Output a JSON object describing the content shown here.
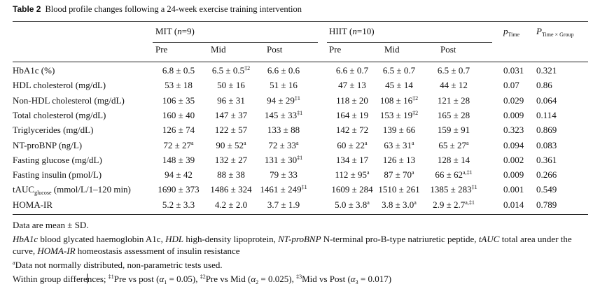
{
  "table": {
    "label": "Table 2",
    "title": "Blood profile changes following a 24-week exercise training intervention",
    "groups": [
      {
        "name": "MIT",
        "n_label": "n",
        "n_value": "=9"
      },
      {
        "name": "HIIT",
        "n_label": "n",
        "n_value": "=10"
      }
    ],
    "p_time": {
      "main": "p",
      "sub": "Time"
    },
    "p_time_group": {
      "main": "P",
      "sub": "Time × Group"
    },
    "subheaders": [
      "Pre",
      "Mid",
      "Post",
      "Pre",
      "Mid",
      "Post"
    ],
    "rows": [
      {
        "label": "HbA1c (%)",
        "label_sub": "",
        "label_rest": "",
        "cells": [
          [
            "6.8 ± 0.5",
            ""
          ],
          [
            "6.5 ± 0.5",
            "‡2"
          ],
          [
            "6.6 ± 0.6",
            ""
          ],
          [
            "6.6 ± 0.7",
            ""
          ],
          [
            "6.5 ± 0.7",
            ""
          ],
          [
            "6.5 ± 0.7",
            ""
          ]
        ],
        "p_time": "0.031",
        "p_tg": "0.321"
      },
      {
        "label": "HDL cholesterol (mg/dL)",
        "label_sub": "",
        "label_rest": "",
        "cells": [
          [
            "53 ± 18",
            ""
          ],
          [
            "50 ± 16",
            ""
          ],
          [
            "51 ± 16",
            ""
          ],
          [
            "47 ± 13",
            ""
          ],
          [
            "45 ± 14",
            ""
          ],
          [
            "44 ± 12",
            ""
          ]
        ],
        "p_time": "0.07",
        "p_tg": "0.86"
      },
      {
        "label": "Non-HDL cholesterol (mg/dL)",
        "label_sub": "",
        "label_rest": "",
        "cells": [
          [
            "106 ± 35",
            ""
          ],
          [
            "96 ± 31",
            ""
          ],
          [
            "94 ± 29",
            "‡1"
          ],
          [
            "118 ± 20",
            ""
          ],
          [
            "108 ± 16",
            "‡2"
          ],
          [
            "121 ± 28",
            ""
          ]
        ],
        "p_time": "0.029",
        "p_tg": "0.064"
      },
      {
        "label": "Total cholesterol (mg/dL)",
        "label_sub": "",
        "label_rest": "",
        "cells": [
          [
            "160 ± 40",
            ""
          ],
          [
            "147 ± 37",
            ""
          ],
          [
            "145 ± 33",
            "‡1"
          ],
          [
            "164 ± 19",
            ""
          ],
          [
            "153 ± 19",
            "‡2"
          ],
          [
            "165 ± 28",
            ""
          ]
        ],
        "p_time": "0.009",
        "p_tg": "0.114"
      },
      {
        "label": "Triglycerides (mg/dL)",
        "label_sub": "",
        "label_rest": "",
        "cells": [
          [
            "126 ± 74",
            ""
          ],
          [
            "122 ± 57",
            ""
          ],
          [
            "133 ± 88",
            ""
          ],
          [
            "142 ± 72",
            ""
          ],
          [
            "139 ± 66",
            ""
          ],
          [
            "159 ± 91",
            ""
          ]
        ],
        "p_time": "0.323",
        "p_tg": "0.869"
      },
      {
        "label": "NT-proBNP (ng/L)",
        "label_sub": "",
        "label_rest": "",
        "cells": [
          [
            "72 ± 27",
            "a"
          ],
          [
            "90 ± 52",
            "a"
          ],
          [
            "72 ± 33",
            "a"
          ],
          [
            "60 ± 22",
            "a"
          ],
          [
            "63 ± 31",
            "a"
          ],
          [
            "65 ± 27",
            "a"
          ]
        ],
        "p_time": "0.094",
        "p_tg": "0.083"
      },
      {
        "label": "Fasting glucose (mg/dL)",
        "label_sub": "",
        "label_rest": "",
        "cells": [
          [
            "148 ± 39",
            ""
          ],
          [
            "132 ± 27",
            ""
          ],
          [
            "131 ± 30",
            "‡1"
          ],
          [
            "134 ± 17",
            ""
          ],
          [
            "126 ± 13",
            ""
          ],
          [
            "128 ± 14",
            ""
          ]
        ],
        "p_time": "0.002",
        "p_tg": "0.361"
      },
      {
        "label": "Fasting insulin (pmol/L)",
        "label_sub": "",
        "label_rest": "",
        "cells": [
          [
            "94 ± 42",
            ""
          ],
          [
            "88 ± 38",
            ""
          ],
          [
            "79 ± 33",
            ""
          ],
          [
            "112 ± 95",
            "a"
          ],
          [
            "87 ± 70",
            "a"
          ],
          [
            "66 ± 62",
            "a,‡1"
          ]
        ],
        "p_time": "0.009",
        "p_tg": "0.266"
      },
      {
        "label": "tAUC",
        "label_sub": "glucose",
        "label_rest": " (mmol/L/1–120 min)",
        "cells": [
          [
            "1690 ± 373",
            ""
          ],
          [
            "1486 ± 324",
            ""
          ],
          [
            "1461 ± 249",
            "‡1"
          ],
          [
            "1609 ± 284",
            ""
          ],
          [
            "1510 ± 261",
            ""
          ],
          [
            "1385 ± 283",
            "‡1"
          ]
        ],
        "p_time": "0.001",
        "p_tg": "0.549"
      },
      {
        "label": "HOMA-IR",
        "label_sub": "",
        "label_rest": "",
        "cells": [
          [
            "5.2 ± 3.3",
            ""
          ],
          [
            "4.2 ± 2.0",
            ""
          ],
          [
            "3.7 ± 1.9",
            ""
          ],
          [
            "5.0 ± 3.8",
            "a"
          ],
          [
            "3.8 ± 3.0",
            "a"
          ],
          [
            "2.9 ± 2.7",
            "a,‡1"
          ]
        ],
        "p_time": "0.014",
        "p_tg": "0.789"
      }
    ]
  },
  "footnotes": {
    "mean_sd": "Data are mean ± SD.",
    "abbrev": [
      {
        "term": "HbA1c",
        "def": " blood glycated haemoglobin A1c, "
      },
      {
        "term": "HDL",
        "def": " high-density lipoprotein, "
      },
      {
        "term": "NT-proBNP",
        "def": " N-terminal pro-B-type natriuretic peptide, "
      },
      {
        "term": "tAUC",
        "def": " total area under the curve, "
      },
      {
        "term": "HOMA-IR",
        "def": " homeostasis assessment of insulin resistance"
      }
    ],
    "nonparam_mark": "a",
    "nonparam": "Data not normally distributed, non-parametric tests used.",
    "within_a": "Within group differe",
    "within_b": "nces; ",
    "diffs": [
      {
        "mark": "‡1",
        "text": "Pre vs post (",
        "alpha": "α",
        "idx": "1",
        "val": " = 0.05)",
        "sep": ", "
      },
      {
        "mark": "‡2",
        "text": "Pre vs Mid (",
        "alpha": "α",
        "idx": "2",
        "val": " = 0.025)",
        "sep": ", "
      },
      {
        "mark": "‡3",
        "text": "Mid vs Post (",
        "alpha": "α",
        "idx": "3",
        "val": " = 0.017)",
        "sep": ""
      }
    ]
  }
}
